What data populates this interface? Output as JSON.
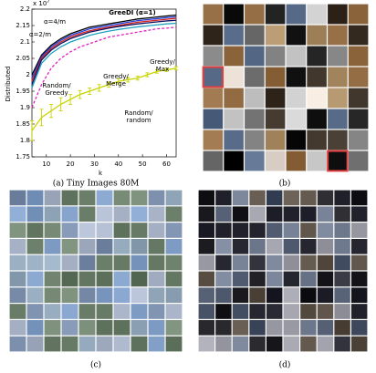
{
  "chart_data": {
    "type": "line",
    "x_label": "k",
    "y_label": "Distributed",
    "y_multiplier": "x 10",
    "y_multiplier_exp": "7",
    "x": [
      4,
      8,
      12,
      16,
      20,
      24,
      28,
      32,
      36,
      40,
      44,
      48,
      52,
      56,
      60,
      64
    ],
    "series": [
      {
        "color": "#000000",
        "values": [
          2.0,
          2.06,
          2.09,
          2.11,
          2.125,
          2.135,
          2.145,
          2.15,
          2.155,
          2.16,
          2.165,
          2.17,
          2.173,
          2.176,
          2.179,
          2.182
        ]
      },
      {
        "color": "#1f3fd8",
        "values": [
          1.99,
          2.055,
          2.085,
          2.105,
          2.12,
          2.13,
          2.14,
          2.145,
          2.15,
          2.155,
          2.16,
          2.165,
          2.168,
          2.171,
          2.174,
          2.177
        ]
      },
      {
        "color": "#d42020",
        "values": [
          1.98,
          2.05,
          2.08,
          2.1,
          2.115,
          2.125,
          2.134,
          2.14,
          2.145,
          2.15,
          2.155,
          2.16,
          2.163,
          2.166,
          2.169,
          2.172
        ]
      },
      {
        "color": "#101060",
        "values": [
          1.97,
          2.045,
          2.075,
          2.095,
          2.11,
          2.12,
          2.13,
          2.136,
          2.142,
          2.147,
          2.151,
          2.155,
          2.158,
          2.161,
          2.164,
          2.166
        ]
      },
      {
        "color": "#20a0c0",
        "values": [
          1.96,
          2.035,
          2.065,
          2.085,
          2.1,
          2.11,
          2.12,
          2.127,
          2.133,
          2.138,
          2.142,
          2.146,
          2.149,
          2.152,
          2.155,
          2.157
        ]
      },
      {
        "color": "#e020c0",
        "dashed": true,
        "values": [
          1.9,
          1.97,
          2.02,
          2.05,
          2.07,
          2.085,
          2.095,
          2.105,
          2.115,
          2.12,
          2.125,
          2.13,
          2.135,
          2.14,
          2.142,
          2.145
        ]
      },
      {
        "color": "#c8d400",
        "values": [
          1.83,
          1.87,
          1.89,
          1.91,
          1.925,
          1.94,
          1.95,
          1.96,
          1.97,
          1.98,
          1.985,
          1.99,
          2.0,
          2.01,
          2.015,
          2.02
        ],
        "errors": [
          0.03,
          0.025,
          0.02,
          0.02,
          0.015,
          0.012,
          0.01,
          0.01,
          0.008,
          0.008,
          0.007,
          0.006,
          0.006,
          0.005,
          0.005,
          0.005
        ]
      }
    ],
    "annotations": [
      [
        "GreeDI (α=1)"
      ],
      [
        "α=4/m"
      ],
      [
        "α=2/m"
      ],
      [
        "Greedy/",
        "Merge"
      ],
      [
        "Greedy/",
        "Max"
      ],
      [
        "Random/",
        "Greedy"
      ],
      [
        "Random/",
        "random"
      ]
    ],
    "xlim": [
      4,
      64
    ],
    "ylim": [
      1.75,
      2.2
    ],
    "xticks": [
      10,
      20,
      30,
      40,
      50,
      60
    ],
    "yticks": [
      1.75,
      1.8,
      1.85,
      1.9,
      1.95,
      2,
      2.05,
      2.1,
      2.15,
      2.2
    ]
  },
  "captions": [
    "(a) Tiny Images 80M",
    "(b)",
    "(c)",
    "(d)"
  ]
}
